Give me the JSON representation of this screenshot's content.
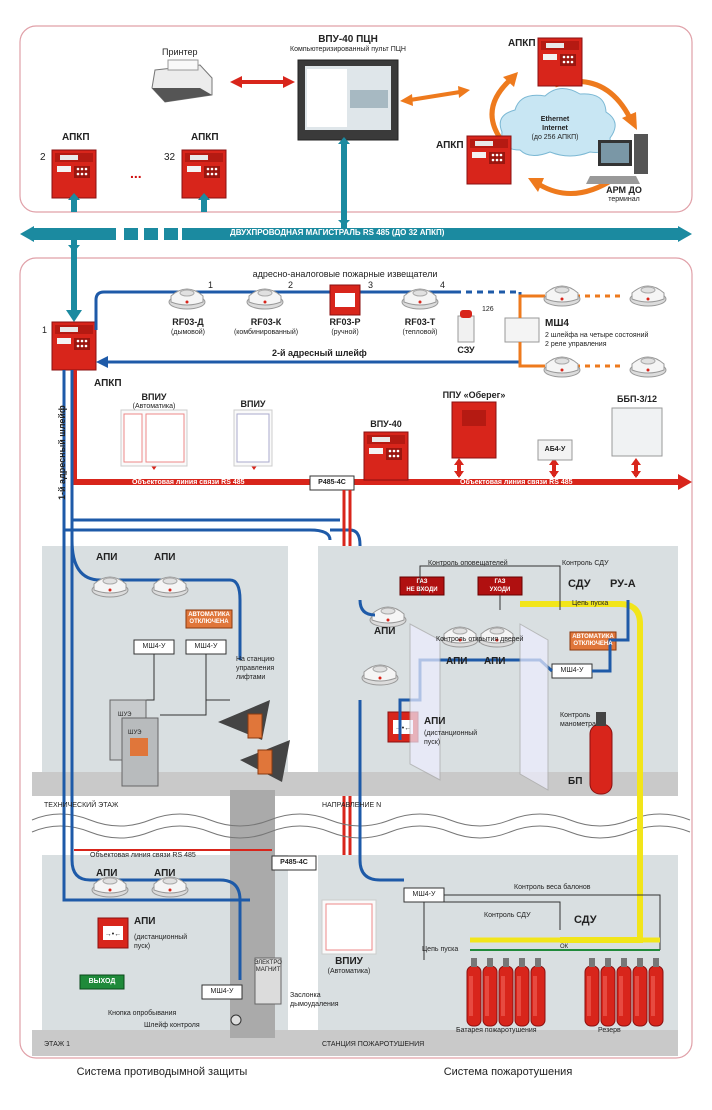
{
  "top": {
    "printer_label": "Принтер",
    "vpu_title": "ВПУ-40 ПЦН",
    "vpu_subtitle": "Компьютеризированный пульт ПЦН",
    "apkp": "АПКП",
    "apkp_index_2": "2",
    "apkp_index_32": "32",
    "dots": "...",
    "cloud_line1": "Ethernet",
    "cloud_line2": "Internet",
    "cloud_line3": "(до 256 АПКП)",
    "arm_title": "АРМ ДО",
    "arm_subtitle": "терминал"
  },
  "bus": {
    "label": "ДВУХПРОВОДНАЯ МАГИСТРАЛЬ RS 485 (ДО 32 АПКП)"
  },
  "system": {
    "detectors_header": "адресно-аналоговые пожарные извещатели",
    "apkp_index_1": "1",
    "apkp": "АПКП",
    "loop1": "1-й адресный шлейф",
    "loop2": "2-й адресный шлейф",
    "detectors": [
      {
        "num": "1",
        "name": "RF03-Д",
        "desc": "(дымовой)"
      },
      {
        "num": "2",
        "name": "RF03-К",
        "desc": "(комбинированный)"
      },
      {
        "num": "3",
        "name": "RF03-Р",
        "desc": "(ручной)"
      },
      {
        "num": "4",
        "name": "RF03-Т",
        "desc": "(тепловой)"
      }
    ],
    "num_126": "126",
    "szu": "СЗУ",
    "msh4": "МШ4",
    "msh4_desc1": "2 шлейфа на четыре состояний",
    "msh4_desc2": "2 реле управления",
    "vpiu_auto_title": "ВПИУ",
    "vpiu_auto_sub": "(Автоматика)",
    "vpiu_title": "ВПИУ",
    "vpu40": "ВПУ-40",
    "ppu": "ППУ «Оберег»",
    "bbp": "ББП-3/12",
    "ab4u": "АБ4-У",
    "line_left": "Объектовая линия связи RS 485",
    "line_right": "Объектовая линия связи RS 485",
    "p485": "Р485-4С"
  },
  "smoke": {
    "api": "АПИ",
    "msh4u": "МШ4-У",
    "auto_off_1": "АВТОМАТИКА",
    "auto_off_2": "ОТКЛЮЧЕНА",
    "to_lifts_1": "На станцию",
    "to_lifts_2": "управления",
    "to_lifts_3": "лифтами",
    "shue": "ШУЭ",
    "floor_tech": "ТЕХНИЧЕСКИЙ ЭТАЖ",
    "floor_1": "ЭТАЖ 1",
    "line485": "Объектовая линия связи RS 485",
    "p485": "Р485-4С",
    "remote_1": "(дистанционный",
    "remote_2": "пуск)",
    "exit": "ВЫХОД",
    "test_button": "Кнопка опробывания",
    "loop_control": "Шлейф контроля",
    "electromagnet_1": "ЭЛЕКТРО",
    "electromagnet_2": "МАГНИТ",
    "damper_1": "Заслонка",
    "damper_2": "дымоудаления",
    "vpiu": "ВПИУ",
    "vpiu_sub": "(Автоматика)",
    "caption": "Система противодымной защиты"
  },
  "fire": {
    "ctrl_alarms": "Контроль оповещателей",
    "ctrl_sdu": "Контроль СДУ",
    "sign_gas1_a": "ГАЗ",
    "sign_gas1_b": "НЕ ВХОДИ",
    "sign_gas2_a": "ГАЗ",
    "sign_gas2_b": "УХОДИ",
    "sdu": "СДУ",
    "rua": "РУ-А",
    "start_circuit": "Цепь пуска",
    "api": "АПИ",
    "ctrl_doors": "Контроль открытия дверей",
    "auto_off_1": "АВТОМАТИКА",
    "auto_off_2": "ОТКЛЮЧЕНА",
    "msh4u": "МШ4-У",
    "remote_1": "(дистанционный",
    "remote_2": "пуск)",
    "manometer_1": "Контроль",
    "manometer_2": "манометра",
    "bp": "БП",
    "direction": "НАПРАВЛЕНИЕ N",
    "ctrl_weight": "Контроль веса балонов",
    "ctrl_sdu2": "Контроль СДУ",
    "start_circuit2": "Цепь пуска",
    "battery": "Батарея пожаротушения",
    "reserve": "Резерв",
    "ok": "ОК",
    "station": "СТАНЦИЯ ПОЖАРОТУШЕНИЯ",
    "caption": "Система пожаротушения"
  },
  "colors": {
    "red": "#d8251b",
    "blue": "#1e5aa8",
    "teal": "#1b8aa0",
    "orange": "#ee7a1d",
    "yellow": "#f2e51a",
    "gray_bg": "#d9dfe1",
    "floor": "#c9c9c9"
  },
  "icons": [
    "printer-icon",
    "monitor-icon",
    "fire-panel-icon",
    "cloud-icon",
    "computer-icon",
    "smoke-detector-icon",
    "manual-call-point-icon",
    "siren-icon",
    "extinguisher-icon",
    "cylinder-icon",
    "fan-icon",
    "cabinet-icon"
  ]
}
